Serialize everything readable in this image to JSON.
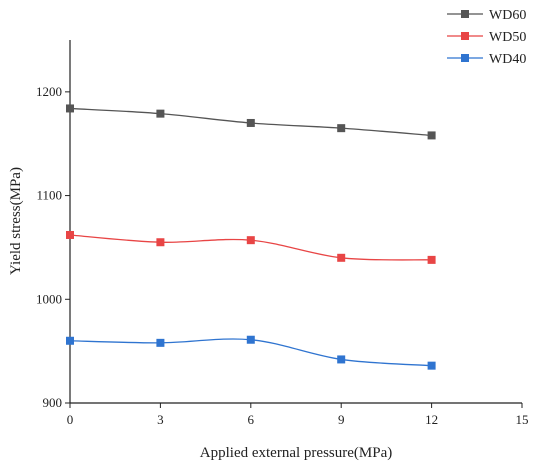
{
  "chart_data": {
    "type": "line",
    "title": "",
    "xlabel": "Applied external pressure(MPa)",
    "ylabel": "Yield stress(MPa)",
    "xlim": [
      0,
      15
    ],
    "ylim": [
      900,
      1250
    ],
    "xticks": [
      0,
      3,
      6,
      9,
      12,
      15
    ],
    "yticks": [
      900,
      1000,
      1100,
      1200
    ],
    "grid": false,
    "legend_position": "top-right",
    "x": [
      0,
      3,
      6,
      9,
      12
    ],
    "series": [
      {
        "name": "WD60",
        "color": "#555555",
        "marker": "square",
        "values": [
          1184,
          1179,
          1170,
          1165,
          1158
        ]
      },
      {
        "name": "WD50",
        "color": "#e84545",
        "marker": "square",
        "values": [
          1062,
          1055,
          1057,
          1040,
          1038
        ]
      },
      {
        "name": "WD40",
        "color": "#2f74d0",
        "marker": "square",
        "values": [
          960,
          958,
          961,
          942,
          936
        ]
      }
    ]
  }
}
